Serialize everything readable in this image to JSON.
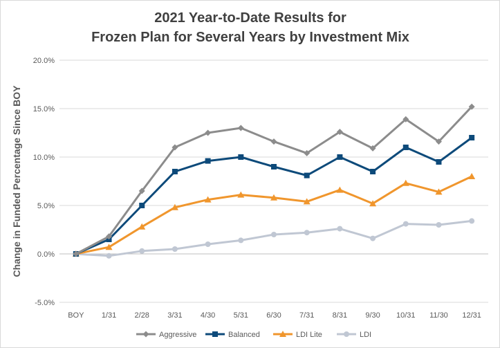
{
  "chart_data": {
    "type": "line",
    "title_lines": [
      "2021 Year-to-Date Results for",
      "Frozen Plan for Several Years by Investment Mix"
    ],
    "xlabel": "",
    "ylabel": "Change in Funded Percentage Since BOY",
    "categories": [
      "BOY",
      "1/31",
      "2/28",
      "3/31",
      "4/30",
      "5/31",
      "6/30",
      "7/31",
      "8/31",
      "9/30",
      "10/31",
      "11/30",
      "12/31"
    ],
    "ylim": [
      -5,
      20
    ],
    "yticks": [
      {
        "value": -5,
        "label": "-5.0%"
      },
      {
        "value": 0,
        "label": "0.0%"
      },
      {
        "value": 5,
        "label": "5.0%"
      },
      {
        "value": 10,
        "label": "10.0%"
      },
      {
        "value": 15,
        "label": "15.0%"
      },
      {
        "value": 20,
        "label": "20.0%"
      }
    ],
    "grid": "horizontal",
    "legend_position": "bottom",
    "series": [
      {
        "name": "Aggressive",
        "color": "#8c8c8c",
        "marker": "diamond",
        "values": [
          0.0,
          1.8,
          6.5,
          11.0,
          12.5,
          13.0,
          11.6,
          10.4,
          12.6,
          10.9,
          13.9,
          11.6,
          15.2
        ]
      },
      {
        "name": "Balanced",
        "color": "#0d4a7a",
        "marker": "square",
        "values": [
          0.0,
          1.5,
          5.0,
          8.5,
          9.6,
          10.0,
          9.0,
          8.1,
          10.0,
          8.5,
          11.0,
          9.5,
          12.0
        ]
      },
      {
        "name": "LDI Lite",
        "color": "#f0962d",
        "marker": "triangle",
        "values": [
          0.0,
          0.7,
          2.8,
          4.8,
          5.6,
          6.1,
          5.8,
          5.4,
          6.6,
          5.2,
          7.3,
          6.4,
          8.0
        ]
      },
      {
        "name": "LDI",
        "color": "#c0c7d3",
        "marker": "circle",
        "values": [
          0.0,
          -0.2,
          0.3,
          0.5,
          1.0,
          1.4,
          2.0,
          2.2,
          2.6,
          1.6,
          3.1,
          3.0,
          3.4
        ]
      }
    ]
  }
}
